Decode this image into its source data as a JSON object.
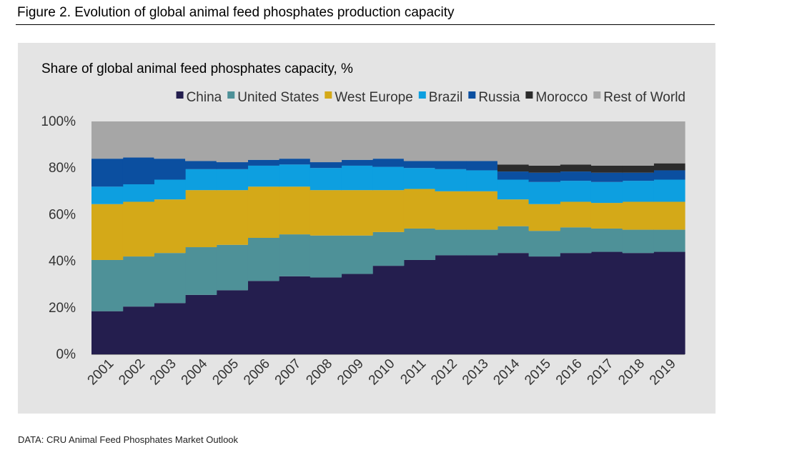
{
  "figure_title": "Figure 2. Evolution of global animal feed phosphates production capacity",
  "source_note": "DATA: CRU Animal Feed Phosphates Market Outlook",
  "chart_data": {
    "type": "area",
    "stacked": true,
    "step": true,
    "title": "Share of global animal feed phosphates capacity, %",
    "xlabel": "",
    "ylabel": "",
    "ylim": [
      0,
      100
    ],
    "y_ticks": [
      0,
      20,
      40,
      60,
      80,
      100
    ],
    "y_tick_labels": [
      "0%",
      "20%",
      "40%",
      "60%",
      "80%",
      "100%"
    ],
    "grid": false,
    "legend_position": "top",
    "categories": [
      "2001",
      "2002",
      "2003",
      "2004",
      "2005",
      "2006",
      "2007",
      "2008",
      "2009",
      "2010",
      "2011",
      "2012",
      "2013",
      "2014",
      "2015",
      "2016",
      "2017",
      "2018",
      "2019"
    ],
    "series": [
      {
        "name": "China",
        "color": "#241e4e",
        "values": [
          18.5,
          20.5,
          22,
          25.5,
          27.5,
          31.5,
          33.5,
          33,
          34.5,
          38,
          40.5,
          42.5,
          42.5,
          43.5,
          42,
          43.5,
          44,
          43.5,
          44
        ]
      },
      {
        "name": "United States",
        "color": "#4e9198",
        "values": [
          22,
          21.5,
          21.5,
          20.5,
          19.5,
          18.5,
          18,
          18,
          16.5,
          14.5,
          13.5,
          11,
          11,
          11.5,
          11,
          11,
          10,
          10,
          9.5
        ]
      },
      {
        "name": "West Europe",
        "color": "#d4a918",
        "values": [
          24,
          23.5,
          23,
          24.5,
          23.5,
          22,
          20.5,
          19.5,
          19.5,
          18,
          17,
          16.5,
          16.5,
          11.5,
          11.5,
          11,
          11,
          12,
          12
        ]
      },
      {
        "name": "Brazil",
        "color": "#0d9fe0",
        "values": [
          7.5,
          7.5,
          8.5,
          9,
          9,
          9,
          9.5,
          9.5,
          10.5,
          10,
          9,
          9.5,
          9,
          8.5,
          9.5,
          9,
          9,
          9,
          9.5
        ]
      },
      {
        "name": "Russia",
        "color": "#0b4fa0",
        "values": [
          12,
          11.5,
          9,
          3.5,
          3,
          2.5,
          2.5,
          2.5,
          2.5,
          3.5,
          3,
          3.5,
          4,
          3.5,
          4,
          4,
          4,
          3.5,
          4
        ]
      },
      {
        "name": "Morocco",
        "color": "#2b2b2b",
        "values": [
          0,
          0,
          0,
          0,
          0,
          0,
          0,
          0,
          0,
          0,
          0,
          0,
          0,
          3,
          3,
          3,
          3,
          3,
          3
        ]
      },
      {
        "name": "Rest of World",
        "color": "#a6a6a6",
        "values": [
          16,
          15.5,
          16,
          17,
          17.5,
          16.5,
          16,
          17.5,
          16.5,
          16,
          17,
          17,
          17,
          18.5,
          19,
          18.5,
          19,
          19,
          18
        ]
      }
    ]
  }
}
